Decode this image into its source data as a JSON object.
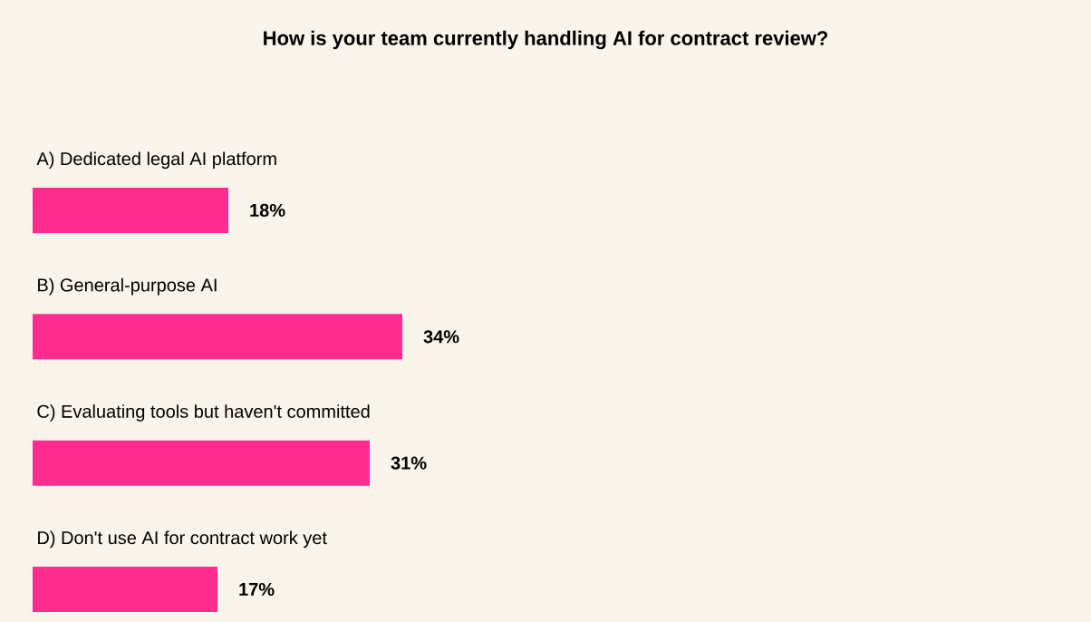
{
  "chart_data": {
    "type": "bar",
    "orientation": "horizontal",
    "title": "How is your team currently handling AI for contract review?",
    "categories": [
      "A) Dedicated legal AI platform",
      "B) General-purpose AI",
      "C) Evaluating tools but haven't committed",
      "D) Don't use AI for contract work yet"
    ],
    "values": [
      18,
      34,
      31,
      17
    ],
    "value_labels": [
      "18%",
      "34%",
      "31%",
      "17%"
    ],
    "color": "#ff2d8f"
  }
}
